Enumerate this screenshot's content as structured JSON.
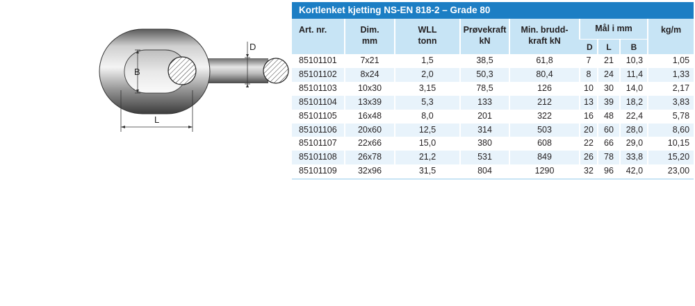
{
  "diagram": {
    "label_d": "D",
    "label_b": "B",
    "label_l": "L"
  },
  "table": {
    "title": "Kortlenket kjetting NS-EN 818-2 – Grade 80",
    "headers": {
      "art": "Art. nr.",
      "dim_1": "Dim.",
      "dim_2": "mm",
      "wll_1": "WLL",
      "wll_2": "tonn",
      "prove_1": "Prøvekraft",
      "prove_2": "kN",
      "brudd_1": "Min. brudd-",
      "brudd_2": "kraft kN",
      "maal": "Mål i mm",
      "d": "D",
      "l": "L",
      "b": "B",
      "kgm": "kg/m"
    },
    "rows": [
      {
        "art": "85101101",
        "dim": "7x21",
        "wll": "1,5",
        "prove": "38,5",
        "brudd": "61,8",
        "d": "7",
        "l": "21",
        "b": "10,3",
        "kgm": "1,05"
      },
      {
        "art": "85101102",
        "dim": "8x24",
        "wll": "2,0",
        "prove": "50,3",
        "brudd": "80,4",
        "d": "8",
        "l": "24",
        "b": "11,4",
        "kgm": "1,33"
      },
      {
        "art": "85101103",
        "dim": "10x30",
        "wll": "3,15",
        "prove": "78,5",
        "brudd": "126",
        "d": "10",
        "l": "30",
        "b": "14,0",
        "kgm": "2,17"
      },
      {
        "art": "85101104",
        "dim": "13x39",
        "wll": "5,3",
        "prove": "133",
        "brudd": "212",
        "d": "13",
        "l": "39",
        "b": "18,2",
        "kgm": "3,83"
      },
      {
        "art": "85101105",
        "dim": "16x48",
        "wll": "8,0",
        "prove": "201",
        "brudd": "322",
        "d": "16",
        "l": "48",
        "b": "22,4",
        "kgm": "5,78"
      },
      {
        "art": "85101106",
        "dim": "20x60",
        "wll": "12,5",
        "prove": "314",
        "brudd": "503",
        "d": "20",
        "l": "60",
        "b": "28,0",
        "kgm": "8,60"
      },
      {
        "art": "85101107",
        "dim": "22x66",
        "wll": "15,0",
        "prove": "380",
        "brudd": "608",
        "d": "22",
        "l": "66",
        "b": "29,0",
        "kgm": "10,15"
      },
      {
        "art": "85101108",
        "dim": "26x78",
        "wll": "21,2",
        "prove": "531",
        "brudd": "849",
        "d": "26",
        "l": "78",
        "b": "33,8",
        "kgm": "15,20"
      },
      {
        "art": "85101109",
        "dim": "32x96",
        "wll": "31,5",
        "prove": "804",
        "brudd": "1290",
        "d": "32",
        "l": "96",
        "b": "42,0",
        "kgm": "23,00"
      }
    ]
  }
}
